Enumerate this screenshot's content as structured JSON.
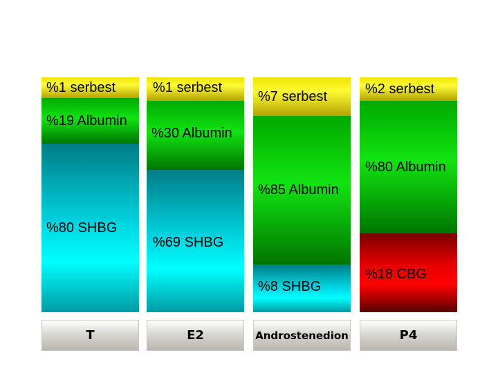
{
  "chart_data": {
    "type": "bar",
    "stacked": true,
    "normalized": true,
    "categories": [
      "T",
      "E2",
      "Androstenedion",
      "P4"
    ],
    "segment_order_top_to_bottom": [
      "serbest",
      "Albumin",
      "SHBG",
      "CBG"
    ],
    "columns": [
      {
        "category": "T",
        "segments": [
          {
            "type": "serbest",
            "percent": 1,
            "label": "%1 serbest"
          },
          {
            "type": "Albumin",
            "percent": 19,
            "label": "%19 Albumin"
          },
          {
            "type": "SHBG",
            "percent": 80,
            "label": "%80 SHBG"
          }
        ]
      },
      {
        "category": "E2",
        "segments": [
          {
            "type": "serbest",
            "percent": 1,
            "label": "%1 serbest"
          },
          {
            "type": "Albumin",
            "percent": 30,
            "label": "%30 Albumin"
          },
          {
            "type": "SHBG",
            "percent": 69,
            "label": "%69 SHBG"
          }
        ]
      },
      {
        "category": "Androstenedion",
        "segments": [
          {
            "type": "serbest",
            "percent": 7,
            "label": "%7 serbest"
          },
          {
            "type": "Albumin",
            "percent": 85,
            "label": "%85 Albumin"
          },
          {
            "type": "SHBG",
            "percent": 8,
            "label": "%8 SHBG"
          }
        ]
      },
      {
        "category": "P4",
        "segments": [
          {
            "type": "serbest",
            "percent": 2,
            "label": "%2 serbest"
          },
          {
            "type": "Albumin",
            "percent": 80,
            "label": "%80 Albumin"
          },
          {
            "type": "CBG",
            "percent": 18,
            "label": "%18 CBG"
          }
        ]
      }
    ]
  },
  "colors": {
    "serbest": "#f3ec00",
    "Albumin": "#0bd20b",
    "SHBG": "#00dfe8",
    "CBG": "#e00000",
    "base": "#d5d2cc"
  }
}
